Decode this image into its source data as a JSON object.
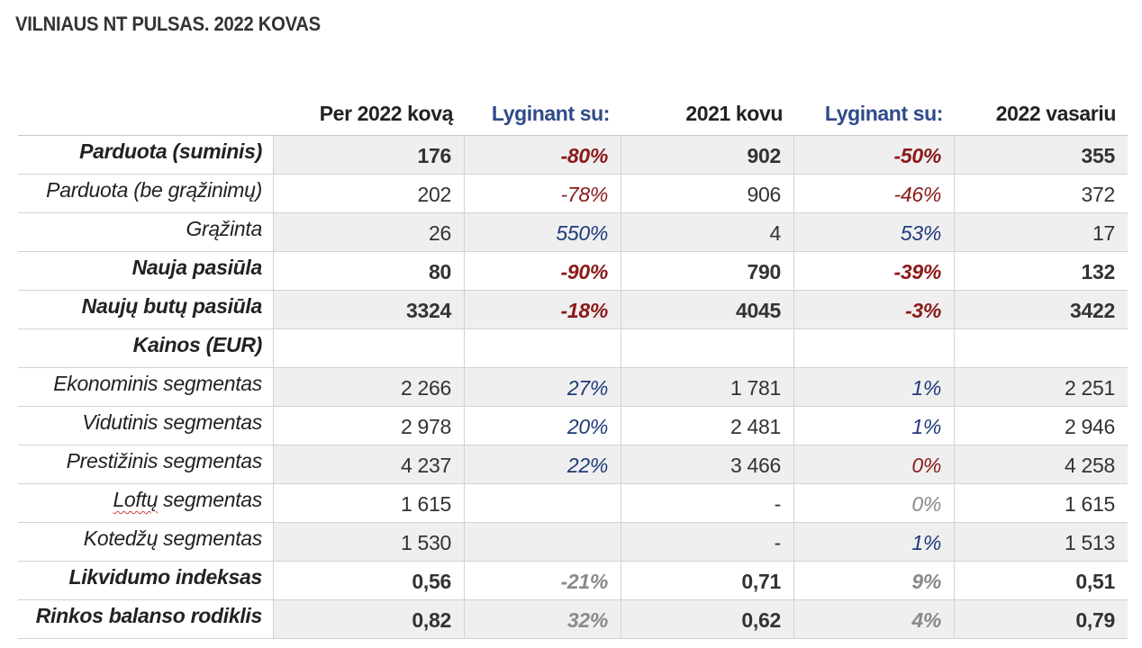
{
  "title": "VILNIAUS NT PULSAS. 2022 KOVAS",
  "headers": {
    "col1": "Per 2022 kovą",
    "col2": "Lyginant su:",
    "col3": "2021 kovu",
    "col4": "Lyginant su:",
    "col5": "2022 vasariu"
  },
  "rows": [
    {
      "label": "Parduota (suminis)",
      "v1": "176",
      "v2": "-80%",
      "v3": "902",
      "v4": "-50%",
      "v5": "355"
    },
    {
      "label": "Parduota (be grąžinimų)",
      "v1": "202",
      "v2": "-78%",
      "v3": "906",
      "v4": "-46%",
      "v5": "372"
    },
    {
      "label": "Grąžinta",
      "v1": "26",
      "v2": "550%",
      "v3": "4",
      "v4": "53%",
      "v5": "17"
    },
    {
      "label": "Nauja pasiūla",
      "v1": "80",
      "v2": "-90%",
      "v3": "790",
      "v4": "-39%",
      "v5": "132"
    },
    {
      "label": "Naujų butų pasiūla",
      "v1": "3324",
      "v2": "-18%",
      "v3": "4045",
      "v4": "-3%",
      "v5": "3422"
    },
    {
      "label": "Kainos (EUR)",
      "v1": "",
      "v2": "",
      "v3": "",
      "v4": "",
      "v5": ""
    },
    {
      "label": "Ekonominis segmentas",
      "v1": "2 266",
      "v2": "27%",
      "v3": "1 781",
      "v4": "1%",
      "v5": "2 251"
    },
    {
      "label": "Vidutinis segmentas",
      "v1": "2 978",
      "v2": "20%",
      "v3": "2 481",
      "v4": "1%",
      "v5": "2 946"
    },
    {
      "label": "Prestižinis segmentas",
      "v1": "4 237",
      "v2": "22%",
      "v3": "3 466",
      "v4": "0%",
      "v5": "4 258"
    },
    {
      "label_a": "Loftų",
      "label_b": " segmentas",
      "v1": "1 615",
      "v2": "",
      "v3": "-",
      "v4": "0%",
      "v5": "1 615"
    },
    {
      "label": "Kotedžų segmentas",
      "v1": "1 530",
      "v2": "",
      "v3": "-",
      "v4": "1%",
      "v5": "1 513"
    },
    {
      "label": "Likvidumo indeksas",
      "v1": "0,56",
      "v2": "-21%",
      "v3": "0,71",
      "v4": "9%",
      "v5": "0,51"
    },
    {
      "label": "Rinkos balanso rodiklis",
      "v1": "0,82",
      "v2": "32%",
      "v3": "0,62",
      "v4": "4%",
      "v5": "0,79"
    }
  ],
  "colors": {
    "negative": "#8b1a1a",
    "positive": "#1f3a7a",
    "muted": "#8a8a8a",
    "header_accent": "#2f4a8a",
    "shade": "#efefef"
  }
}
